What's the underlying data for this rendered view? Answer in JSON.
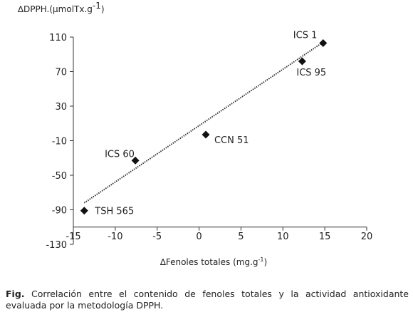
{
  "chart_data": {
    "type": "scatter",
    "ylabel_prefix": "∆DPPH.(µmolTx.g",
    "ylabel_sup": "-1",
    "ylabel_suffix": ")",
    "xlabel_prefix": "∆Fenoles totales (mg.g",
    "xlabel_sup": "-1",
    "xlabel_suffix": ")",
    "xlim": [
      -15,
      20
    ],
    "ylim": [
      -130,
      110
    ],
    "xticks": [
      -15,
      -10,
      -5,
      0,
      5,
      10,
      15,
      20
    ],
    "yticks": [
      110,
      70,
      30,
      -10,
      -50,
      -90,
      -130
    ],
    "points": [
      {
        "label": "ICS 1",
        "x": 14.8,
        "y": 103
      },
      {
        "label": "ICS 95",
        "x": 12.3,
        "y": 82
      },
      {
        "label": "CCN 51",
        "x": 0.8,
        "y": -3
      },
      {
        "label": "ICS 60",
        "x": -7.6,
        "y": -33
      },
      {
        "label": "TSH 565",
        "x": -13.7,
        "y": -91
      }
    ],
    "trendline": {
      "x1": -13.7,
      "y1": -82,
      "x2": 14.8,
      "y2": 104
    },
    "grid": false,
    "legend": "none"
  },
  "caption": {
    "bold": "Fig.",
    "text": " Correlación entre el contenido de fenoles totales y la actividad antioxidante evaluada por la metodología DPPH."
  }
}
